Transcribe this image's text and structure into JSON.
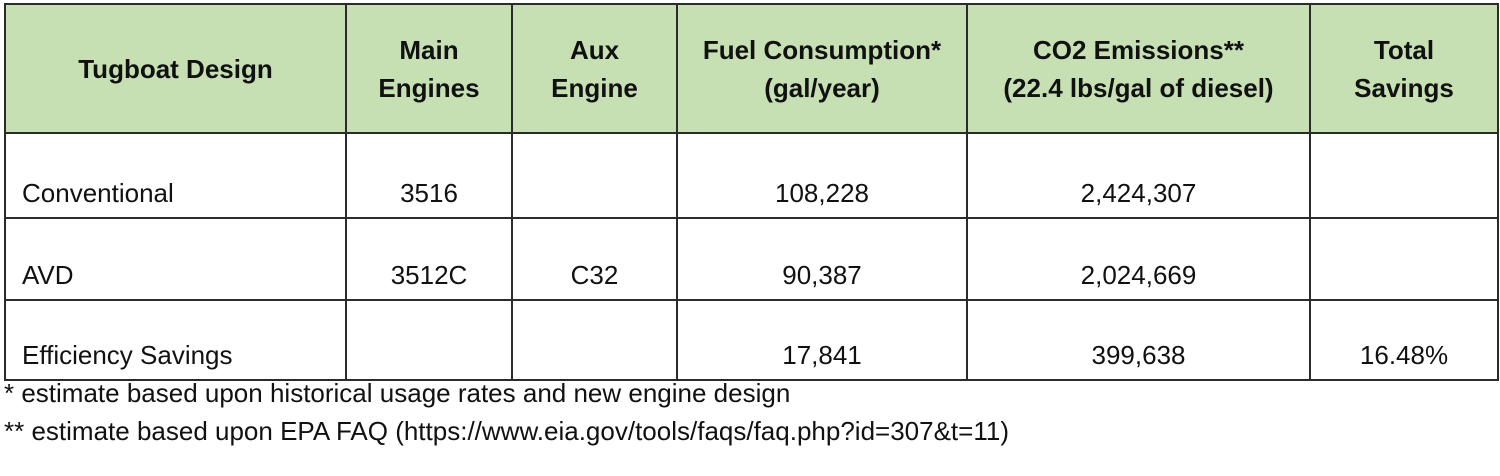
{
  "table": {
    "headers": [
      [
        "Tugboat Design"
      ],
      [
        "Main",
        "Engines"
      ],
      [
        "Aux",
        "Engine"
      ],
      [
        "Fuel Consumption*",
        "(gal/year)"
      ],
      [
        "CO2 Emissions**",
        "(22.4 lbs/gal of diesel)"
      ],
      [
        "Total",
        "Savings"
      ]
    ],
    "rows": [
      [
        "Conventional",
        "3516",
        "",
        "108,228",
        "2,424,307",
        ""
      ],
      [
        "AVD",
        "3512C",
        "C32",
        "90,387",
        "2,024,669",
        ""
      ],
      [
        "Efficiency Savings",
        "",
        "",
        "17,841",
        "399,638",
        "16.48%"
      ]
    ]
  },
  "notes": {
    "note_1": "* estimate based upon historical usage rates and new engine design",
    "note_2": "** estimate based upon EPA FAQ (https://www.eia.gov/tools/faqs/faq.php?id=307&t=11)"
  },
  "colors": {
    "header_bg": "#c6dfb3",
    "border": "#2b2b2b"
  }
}
